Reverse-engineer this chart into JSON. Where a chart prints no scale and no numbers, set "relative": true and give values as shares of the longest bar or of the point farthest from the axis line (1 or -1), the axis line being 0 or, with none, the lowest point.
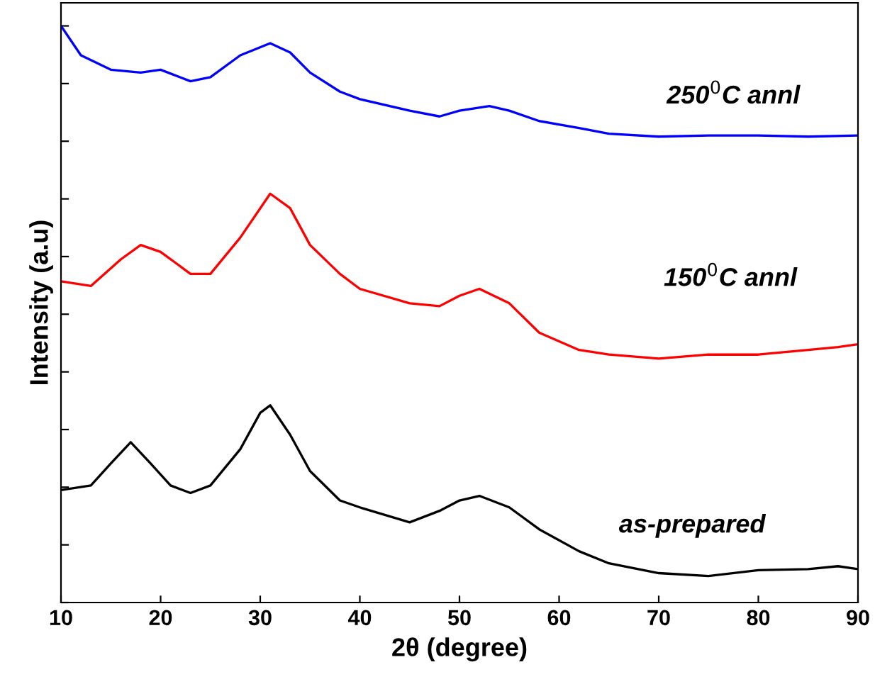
{
  "chart_data": {
    "type": "line",
    "relative": true,
    "xlabel": "2θ (degree)",
    "ylabel": "Intensity (a.u)",
    "xlim": [
      10,
      90
    ],
    "xticks": [
      10,
      20,
      30,
      40,
      50,
      60,
      70,
      80,
      90
    ],
    "tick_labels": "x",
    "grid": false,
    "legend": false,
    "marker": "none",
    "line_style": "solid",
    "series": [
      {
        "name": "250$^{0}$C annl",
        "color": "#0000ff",
        "x": [
          10,
          12,
          15,
          18,
          20,
          23,
          25,
          28,
          31,
          33,
          35,
          38,
          40,
          45,
          48,
          50,
          53,
          55,
          58,
          62,
          65,
          70,
          75,
          80,
          85,
          90
        ],
        "values": [
          1.0,
          0.949,
          0.924,
          0.919,
          0.924,
          0.904,
          0.911,
          0.949,
          0.97,
          0.954,
          0.919,
          0.886,
          0.873,
          0.853,
          0.843,
          0.853,
          0.861,
          0.853,
          0.835,
          0.823,
          0.813,
          0.808,
          0.81,
          0.81,
          0.808,
          0.81
        ]
      },
      {
        "name": "150$^{0}$C annl",
        "color": "#ff0000",
        "x": [
          10,
          13,
          16,
          18,
          20,
          23,
          25,
          28,
          31,
          33,
          35,
          38,
          40,
          45,
          48,
          50,
          52,
          55,
          58,
          62,
          65,
          70,
          75,
          80,
          85,
          88,
          90
        ],
        "values": [
          0.557,
          0.549,
          0.595,
          0.62,
          0.608,
          0.57,
          0.57,
          0.633,
          0.709,
          0.684,
          0.62,
          0.57,
          0.544,
          0.519,
          0.514,
          0.532,
          0.544,
          0.519,
          0.468,
          0.438,
          0.43,
          0.423,
          0.43,
          0.43,
          0.438,
          0.443,
          0.448
        ]
      },
      {
        "name": "as-prepared",
        "color": "#000000",
        "x": [
          10,
          13,
          15,
          17,
          19,
          21,
          23,
          25,
          28,
          30,
          31,
          33,
          35,
          38,
          40,
          45,
          48,
          50,
          52,
          55,
          58,
          62,
          65,
          70,
          75,
          80,
          85,
          88,
          90
        ],
        "values": [
          0.195,
          0.203,
          0.241,
          0.278,
          0.241,
          0.203,
          0.19,
          0.203,
          0.266,
          0.329,
          0.342,
          0.291,
          0.228,
          0.177,
          0.165,
          0.139,
          0.159,
          0.177,
          0.185,
          0.165,
          0.127,
          0.089,
          0.068,
          0.051,
          0.046,
          0.056,
          0.058,
          0.063,
          0.058
        ]
      }
    ]
  }
}
